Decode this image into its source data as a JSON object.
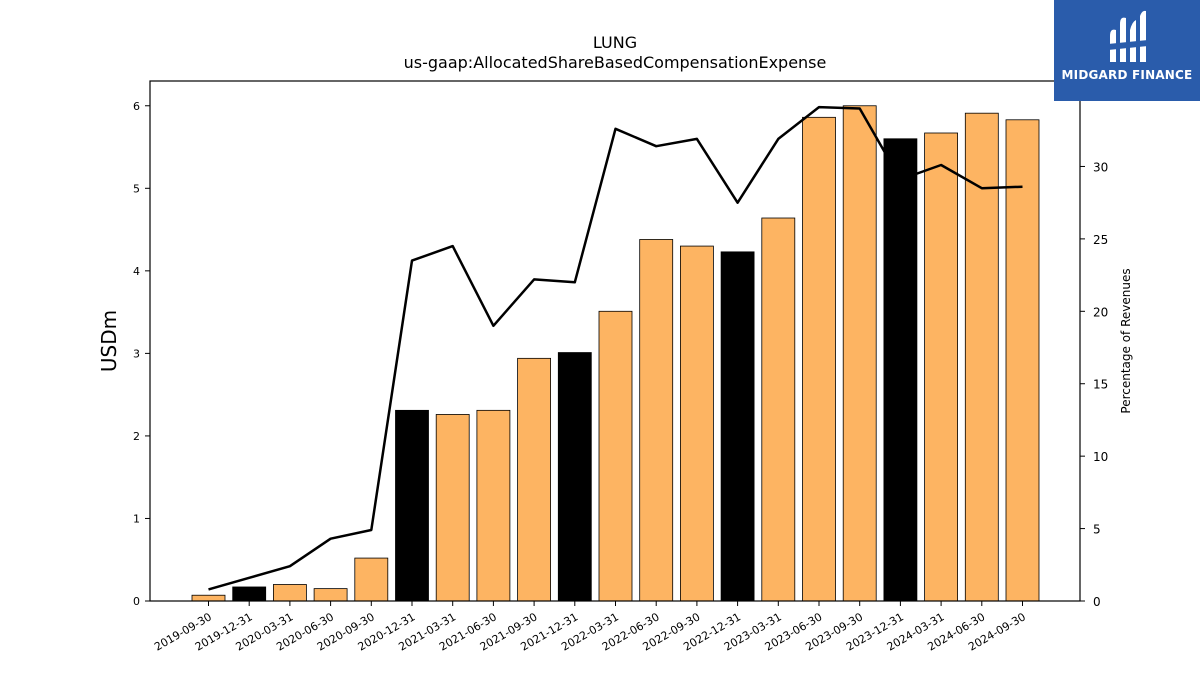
{
  "brand": {
    "name": "MIDGARD FINANCE",
    "bg_color": "#2a5cab"
  },
  "chart_data": {
    "type": "bar",
    "title": "LUNG",
    "subtitle": "us-gaap:AllocatedShareBasedCompensationExpense",
    "ylabel": "USDm",
    "y2label": "Percentage of Revenues",
    "ylim": [
      0,
      6.3
    ],
    "y2lim": [
      0,
      35.9
    ],
    "yticks": [
      0,
      1,
      2,
      3,
      4,
      5,
      6
    ],
    "y2ticks": [
      0,
      5,
      10,
      15,
      20,
      25,
      30
    ],
    "categories": [
      "2019-09-30",
      "2019-12-31",
      "2020-03-31",
      "2020-06-30",
      "2020-09-30",
      "2020-12-31",
      "2021-03-31",
      "2021-06-30",
      "2021-09-30",
      "2021-12-31",
      "2022-03-31",
      "2022-06-30",
      "2022-09-30",
      "2022-12-31",
      "2023-03-31",
      "2023-06-30",
      "2023-09-30",
      "2023-12-31",
      "2024-03-31",
      "2024-06-30",
      "2024-09-30"
    ],
    "series": [
      {
        "type": "bar",
        "values": [
          0.07,
          0.17,
          0.2,
          0.15,
          0.52,
          2.31,
          2.26,
          2.31,
          2.94,
          3.01,
          3.51,
          4.38,
          4.3,
          4.23,
          4.64,
          5.86,
          6.0,
          5.6,
          5.67,
          5.91,
          5.83
        ],
        "colors": [
          "#fdb462",
          "#000000",
          "#fdb462",
          "#fdb462",
          "#fdb462",
          "#000000",
          "#fdb462",
          "#fdb462",
          "#fdb462",
          "#000000",
          "#fdb462",
          "#fdb462",
          "#fdb462",
          "#000000",
          "#fdb462",
          "#fdb462",
          "#fdb462",
          "#000000",
          "#fdb462",
          "#fdb462",
          "#fdb462"
        ]
      },
      {
        "type": "line",
        "axis": "right",
        "color": "#000000",
        "values": [
          0.8,
          1.6,
          2.4,
          4.3,
          4.9,
          23.5,
          24.5,
          19.0,
          22.2,
          22.0,
          32.6,
          31.4,
          31.9,
          27.5,
          31.9,
          34.1,
          34.0,
          29.1,
          30.1,
          28.5,
          28.6
        ]
      }
    ],
    "grid": false
  }
}
